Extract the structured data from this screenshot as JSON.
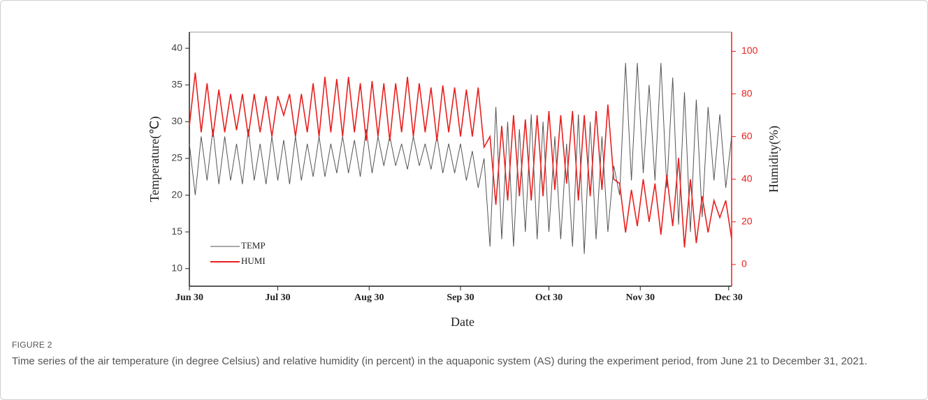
{
  "chart_data": {
    "type": "line",
    "xlabel": "Date",
    "ylabel": "Temperature(℃)",
    "y2label": "Humidity(%)",
    "x": [
      "Jun 30",
      "Jul 2",
      "Jul 4",
      "Jul 6",
      "Jul 8",
      "Jul 10",
      "Jul 12",
      "Jul 14",
      "Jul 16",
      "Jul 18",
      "Jul 20",
      "Jul 22",
      "Jul 24",
      "Jul 26",
      "Jul 28",
      "Jul 30",
      "Aug 1",
      "Aug 3",
      "Aug 5",
      "Aug 7",
      "Aug 9",
      "Aug 11",
      "Aug 13",
      "Aug 15",
      "Aug 17",
      "Aug 19",
      "Aug 21",
      "Aug 23",
      "Aug 25",
      "Aug 27",
      "Aug 29",
      "Aug 31",
      "Sep 2",
      "Sep 4",
      "Sep 6",
      "Sep 8",
      "Sep 10",
      "Sep 12",
      "Sep 14",
      "Sep 16",
      "Sep 18",
      "Sep 20",
      "Sep 22",
      "Sep 24",
      "Sep 26",
      "Sep 28",
      "Sep 30",
      "Oct 2",
      "Oct 4",
      "Oct 6",
      "Oct 8",
      "Oct 10",
      "Oct 12",
      "Oct 14",
      "Oct 16",
      "Oct 18",
      "Oct 20",
      "Oct 22",
      "Oct 24",
      "Oct 26",
      "Oct 28",
      "Oct 30",
      "Nov 1",
      "Nov 3",
      "Nov 5",
      "Nov 7",
      "Nov 9",
      "Nov 11",
      "Nov 13",
      "Nov 15",
      "Nov 17",
      "Nov 19",
      "Nov 21",
      "Nov 23",
      "Nov 25",
      "Nov 27",
      "Nov 29",
      "Dec 1",
      "Dec 3",
      "Dec 5",
      "Dec 7",
      "Dec 9",
      "Dec 11",
      "Dec 13",
      "Dec 15",
      "Dec 17",
      "Dec 19",
      "Dec 21",
      "Dec 23",
      "Dec 25",
      "Dec 27",
      "Dec 29",
      "Dec 31"
    ],
    "series": [
      {
        "name": "TEMP",
        "color": "#555555",
        "axis": "y",
        "values": [
          27,
          20,
          28,
          22,
          29,
          21.5,
          28,
          22,
          27,
          21.5,
          29,
          22,
          27,
          21.5,
          28,
          22,
          27.5,
          21.5,
          28,
          22,
          27,
          22.5,
          28,
          22.5,
          27,
          23,
          28,
          23,
          27.5,
          22.5,
          29,
          23,
          28,
          24,
          28,
          24,
          27,
          23.5,
          28,
          24,
          27,
          23.5,
          28,
          23,
          27,
          23,
          27,
          22,
          26,
          21,
          25,
          13,
          32,
          14,
          30,
          13,
          29,
          15,
          31,
          14,
          30,
          15,
          28,
          14,
          27,
          13,
          31,
          12,
          30,
          14,
          28,
          15,
          24,
          20,
          38,
          22,
          38,
          23,
          35,
          22,
          38,
          21,
          36,
          16,
          34,
          15,
          33,
          17,
          32,
          22,
          31,
          21,
          28
        ]
      },
      {
        "name": "HUMI",
        "color": "#e8201e",
        "axis": "y2",
        "values": [
          65,
          90,
          62,
          85,
          60,
          82,
          62,
          80,
          63,
          80,
          60,
          80,
          62,
          79,
          60,
          79,
          70,
          80,
          60,
          80,
          62,
          85,
          60,
          88,
          62,
          87,
          60,
          88,
          62,
          85,
          58,
          86,
          60,
          85,
          58,
          85,
          62,
          88,
          60,
          85,
          62,
          83,
          58,
          84,
          62,
          83,
          60,
          82,
          60,
          83,
          55,
          60,
          28,
          65,
          30,
          70,
          32,
          68,
          30,
          70,
          32,
          72,
          35,
          70,
          38,
          72,
          30,
          70,
          32,
          72,
          35,
          75,
          40,
          38,
          15,
          35,
          18,
          40,
          20,
          38,
          14,
          42,
          18,
          50,
          8,
          40,
          10,
          32,
          15,
          30,
          22,
          30,
          12
        ]
      }
    ],
    "xlim": [
      "Jun 30",
      "Dec 31"
    ],
    "xticks": [
      "Jun 30",
      "Jul 30",
      "Aug 30",
      "Sep 30",
      "Oct 30",
      "Nov 30",
      "Dec 30"
    ],
    "ylim": [
      7.6,
      42.2
    ],
    "yticks": [
      10,
      15,
      20,
      25,
      30,
      35,
      40
    ],
    "y2lim": [
      -10.2,
      109
    ],
    "y2ticks": [
      0,
      20,
      40,
      60,
      80,
      100
    ],
    "legend": "lower-left"
  },
  "caption": {
    "label": "FIGURE 2",
    "text": "Time series of the air temperature (in degree Celsius) and relative humidity (in percent) in the aquaponic system (AS) during the experiment period, from June 21 to December 31, 2021."
  }
}
